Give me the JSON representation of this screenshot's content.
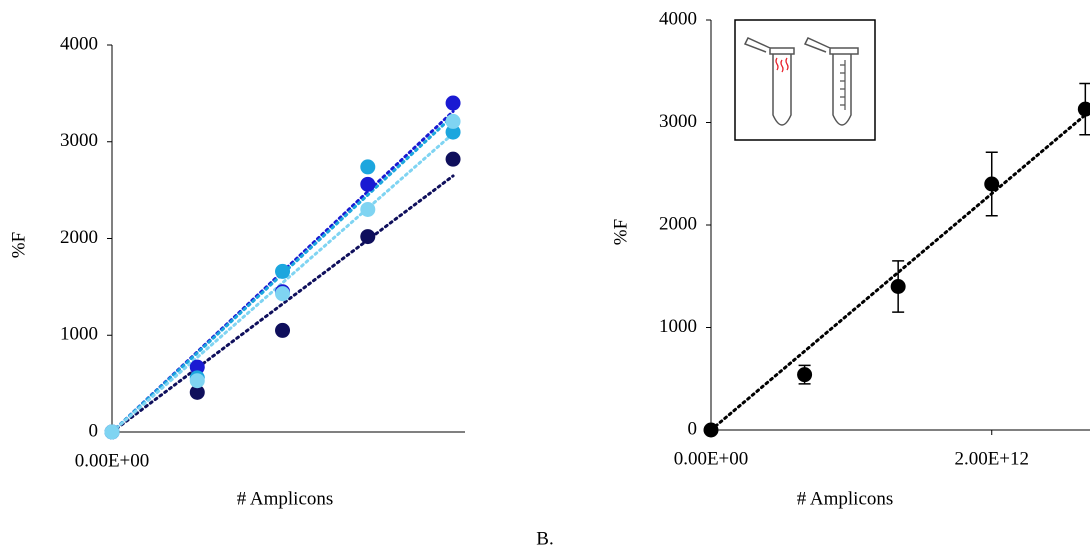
{
  "chart_data": [
    {
      "type": "scatter",
      "x_label": "# Amplicons",
      "y_label": "%F",
      "x": [
        0,
        666700000000,
        1333300000000,
        2000000000000,
        2666700000000
      ],
      "series": [
        {
          "color": "#0f0f5c",
          "values": [
            0,
            410,
            1050,
            2020,
            2820
          ]
        },
        {
          "color": "#1a1ad2",
          "values": [
            0,
            670,
            1450,
            2560,
            3400
          ]
        },
        {
          "color": "#1ca6de",
          "values": [
            0,
            560,
            1660,
            2740,
            3100
          ]
        },
        {
          "color": "#7fd4f2",
          "values": [
            0,
            530,
            1430,
            2300,
            3210
          ]
        }
      ],
      "trendline": true,
      "xlim": [
        0,
        2760000000000
      ],
      "xticks": [
        {
          "value": 0,
          "label": "0.00E+00"
        }
      ],
      "ylim": [
        0,
        4000
      ],
      "yticks": [
        0,
        1000,
        2000,
        3000,
        4000
      ]
    },
    {
      "type": "scatter",
      "x_label": "# Amplicons",
      "y_label": "%F",
      "x": [
        0,
        666700000000,
        1333300000000,
        2000000000000,
        2666700000000
      ],
      "series": [
        {
          "color": "#000000",
          "values": [
            0,
            540,
            1400,
            2400,
            3130
          ],
          "errors": [
            0,
            90,
            250,
            310,
            250
          ]
        }
      ],
      "trendline": true,
      "xlim": [
        0,
        2700000000000
      ],
      "xticks": [
        {
          "value": 0,
          "label": "0.00E+00"
        },
        {
          "value": 2000000000000,
          "label": "2.00E+12"
        }
      ],
      "ylim": [
        0,
        4000
      ],
      "yticks": [
        0,
        1000,
        2000,
        3000,
        4000
      ]
    }
  ],
  "figure_label": "B."
}
